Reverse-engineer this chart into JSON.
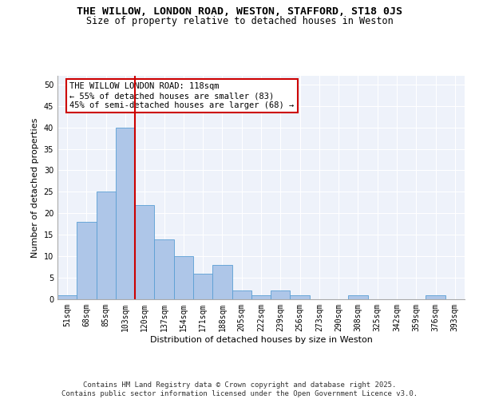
{
  "title1": "THE WILLOW, LONDON ROAD, WESTON, STAFFORD, ST18 0JS",
  "title2": "Size of property relative to detached houses in Weston",
  "xlabel": "Distribution of detached houses by size in Weston",
  "ylabel": "Number of detached properties",
  "categories": [
    "51sqm",
    "68sqm",
    "85sqm",
    "103sqm",
    "120sqm",
    "137sqm",
    "154sqm",
    "171sqm",
    "188sqm",
    "205sqm",
    "222sqm",
    "239sqm",
    "256sqm",
    "273sqm",
    "290sqm",
    "308sqm",
    "325sqm",
    "342sqm",
    "359sqm",
    "376sqm",
    "393sqm"
  ],
  "values": [
    1,
    18,
    25,
    40,
    22,
    14,
    10,
    6,
    8,
    2,
    1,
    2,
    1,
    0,
    0,
    1,
    0,
    0,
    0,
    1,
    0
  ],
  "bar_color": "#aec6e8",
  "bar_edge_color": "#5a9fd4",
  "vline_index": 4,
  "vline_color": "#cc0000",
  "annotation_text": "THE WILLOW LONDON ROAD: 118sqm\n← 55% of detached houses are smaller (83)\n45% of semi-detached houses are larger (68) →",
  "annotation_box_color": "#ffffff",
  "annotation_box_edge_color": "#cc0000",
  "ylim": [
    0,
    52
  ],
  "yticks": [
    0,
    5,
    10,
    15,
    20,
    25,
    30,
    35,
    40,
    45,
    50
  ],
  "footer": "Contains HM Land Registry data © Crown copyright and database right 2025.\nContains public sector information licensed under the Open Government Licence v3.0.",
  "background_color": "#eef2fa",
  "grid_color": "#ffffff",
  "title_fontsize": 9.5,
  "subtitle_fontsize": 8.5,
  "label_fontsize": 8,
  "tick_fontsize": 7,
  "annotation_fontsize": 7.5,
  "footer_fontsize": 6.5
}
